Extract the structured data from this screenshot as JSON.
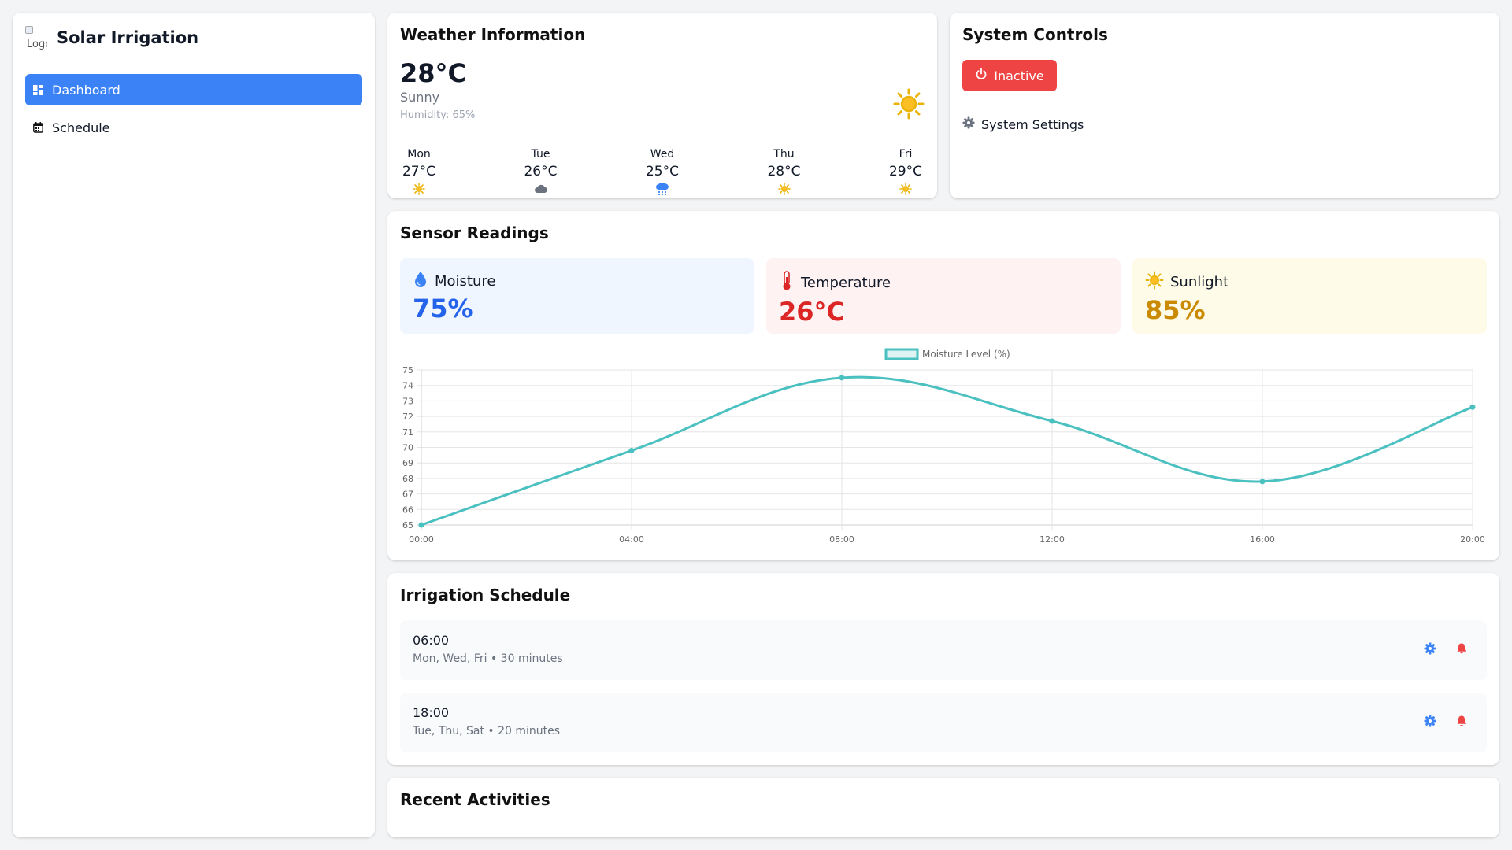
{
  "sidebar": {
    "logo_alt": "Logo",
    "app_title": "Solar Irrigation",
    "items": [
      {
        "label": "Dashboard",
        "icon": "grid-icon",
        "active": true
      },
      {
        "label": "Schedule",
        "icon": "calendar-icon",
        "active": false
      }
    ]
  },
  "weather": {
    "title": "Weather Information",
    "temperature": "28°C",
    "condition": "Sunny",
    "humidity": "Humidity: 65%",
    "icon": "sun-icon",
    "forecast": [
      {
        "day": "Mon",
        "temp": "27°C",
        "icon": "sun-icon"
      },
      {
        "day": "Tue",
        "temp": "26°C",
        "icon": "cloud-icon"
      },
      {
        "day": "Wed",
        "temp": "25°C",
        "icon": "rain-icon"
      },
      {
        "day": "Thu",
        "temp": "28°C",
        "icon": "sun-icon"
      },
      {
        "day": "Fri",
        "temp": "29°C",
        "icon": "sun-icon"
      }
    ]
  },
  "controls": {
    "title": "System Controls",
    "status_label": "Inactive",
    "settings_label": "System Settings"
  },
  "sensors": {
    "title": "Sensor Readings",
    "moisture": {
      "label": "Moisture",
      "value": "75%"
    },
    "temperature": {
      "label": "Temperature",
      "value": "26°C"
    },
    "sunlight": {
      "label": "Sunlight",
      "value": "85%"
    }
  },
  "chart_data": {
    "type": "line",
    "x": [
      "00:00",
      "04:00",
      "08:00",
      "12:00",
      "16:00",
      "20:00"
    ],
    "series": [
      {
        "name": "Moisture Level (%)",
        "values": [
          65,
          69.8,
          74.5,
          71.7,
          67.8,
          72.6
        ]
      }
    ],
    "ylim": [
      65,
      75
    ],
    "yticks": [
      65,
      66,
      67,
      68,
      69,
      70,
      71,
      72,
      73,
      74,
      75
    ],
    "grid": true,
    "legend": "top-center",
    "color": "#4bc0c0"
  },
  "schedule": {
    "title": "Irrigation Schedule",
    "items": [
      {
        "time": "06:00",
        "detail": "Mon, Wed, Fri • 30 minutes"
      },
      {
        "time": "18:00",
        "detail": "Tue, Thu, Sat • 20 minutes"
      }
    ]
  },
  "activities": {
    "title": "Recent Activities"
  },
  "colors": {
    "primary": "#3b82f6",
    "danger": "#ef4444",
    "sun": "#eab308"
  }
}
